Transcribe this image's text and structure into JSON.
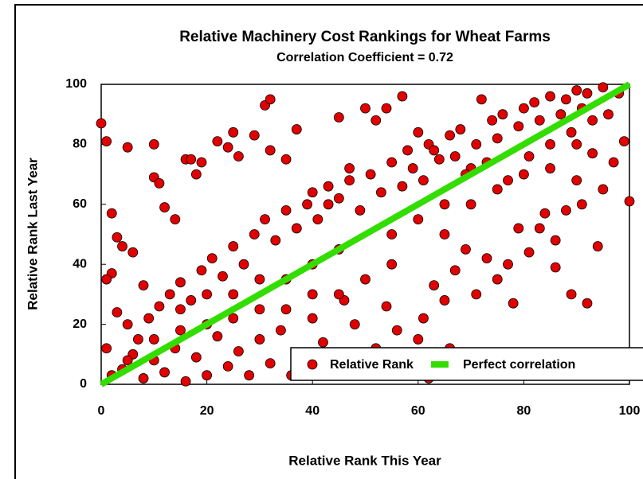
{
  "chart_data": {
    "type": "scatter",
    "title": "Relative Machinery Cost Rankings for Wheat Farms",
    "subtitle": "Correlation Coefficient = 0.72",
    "x_label": "Relative Rank This Year",
    "y_label": "Relative Rank Last Year",
    "xlim": [
      0,
      100
    ],
    "ylim": [
      0,
      100
    ],
    "xticks": [
      0,
      20,
      40,
      60,
      80,
      100
    ],
    "yticks": [
      0,
      20,
      40,
      60,
      80,
      100
    ],
    "legend": "bottom-right",
    "series": [
      {
        "name": "Relative Rank",
        "color": "#e00000",
        "x": [
          0,
          1,
          2,
          3,
          4,
          5,
          2,
          1,
          3,
          6,
          8,
          10,
          10,
          11,
          12,
          14,
          16,
          17,
          18,
          19,
          22,
          24,
          25,
          26,
          29,
          31,
          32,
          32,
          35,
          37,
          40,
          43,
          45,
          47,
          50,
          52,
          54,
          57,
          58,
          60,
          62,
          64,
          66,
          68,
          70,
          72,
          74,
          76,
          80,
          82,
          85,
          88,
          90,
          92,
          95,
          98,
          99,
          100,
          97,
          95,
          93,
          90,
          88,
          86,
          84,
          83,
          81,
          79,
          77,
          75,
          73,
          71,
          69,
          67,
          65,
          63,
          61,
          60,
          58,
          56,
          54,
          52,
          50,
          48,
          46,
          44,
          42,
          40,
          38,
          36,
          34,
          32,
          30,
          28,
          26,
          24,
          22,
          20,
          18,
          16,
          14,
          12,
          10,
          8,
          6,
          4,
          2,
          1,
          5,
          7,
          9,
          11,
          13,
          15,
          17,
          19,
          21,
          23,
          25,
          27,
          29,
          31,
          33,
          35,
          37,
          39,
          41,
          43,
          45,
          47,
          49,
          51,
          53,
          55,
          57,
          59,
          61,
          63,
          65,
          67,
          69,
          71,
          73,
          75,
          77,
          79,
          81,
          83,
          85,
          87,
          89,
          91,
          93,
          96,
          85,
          92,
          94,
          89,
          78,
          72,
          66,
          62,
          91,
          86,
          30,
          35,
          40,
          45,
          55,
          60,
          65,
          70,
          75,
          80,
          85,
          90,
          20,
          25,
          15,
          10,
          5,
          50,
          55,
          45,
          40,
          35,
          30,
          25,
          20,
          15
        ],
        "values": [
          87,
          81,
          57,
          49,
          46,
          79,
          37,
          35,
          24,
          44,
          33,
          80,
          69,
          67,
          59,
          55,
          75,
          75,
          70,
          74,
          81,
          79,
          84,
          76,
          83,
          93,
          95,
          78,
          75,
          85,
          64,
          60,
          89,
          72,
          92,
          88,
          92,
          96,
          78,
          84,
          80,
          75,
          83,
          85,
          72,
          95,
          88,
          90,
          92,
          94,
          96,
          95,
          98,
          97,
          99,
          97,
          81,
          61,
          74,
          65,
          77,
          68,
          58,
          48,
          57,
          52,
          44,
          52,
          40,
          35,
          42,
          30,
          45,
          38,
          28,
          33,
          22,
          15,
          8,
          18,
          26,
          12,
          5,
          20,
          28,
          5,
          14,
          22,
          10,
          3,
          18,
          7,
          15,
          3,
          11,
          6,
          16,
          3,
          9,
          1,
          12,
          4,
          8,
          2,
          10,
          5,
          3,
          12,
          20,
          15,
          22,
          26,
          30,
          34,
          28,
          38,
          42,
          36,
          46,
          40,
          50,
          55,
          48,
          58,
          52,
          60,
          55,
          66,
          62,
          68,
          58,
          70,
          64,
          74,
          66,
          72,
          68,
          78,
          60,
          76,
          70,
          80,
          74,
          82,
          68,
          86,
          76,
          88,
          80,
          90,
          84,
          92,
          88,
          90,
          3,
          27,
          46,
          30,
          27,
          8,
          12,
          2,
          60,
          39,
          35,
          25,
          40,
          45,
          50,
          55,
          50,
          60,
          65,
          70,
          72,
          80,
          20,
          22,
          18,
          15,
          8,
          35,
          40,
          30,
          30,
          35,
          25,
          30,
          30,
          25
        ]
      },
      {
        "name": "Perfect correlation",
        "color": "#33dd00",
        "x": [
          0,
          100
        ],
        "values": [
          0,
          100
        ]
      }
    ]
  }
}
